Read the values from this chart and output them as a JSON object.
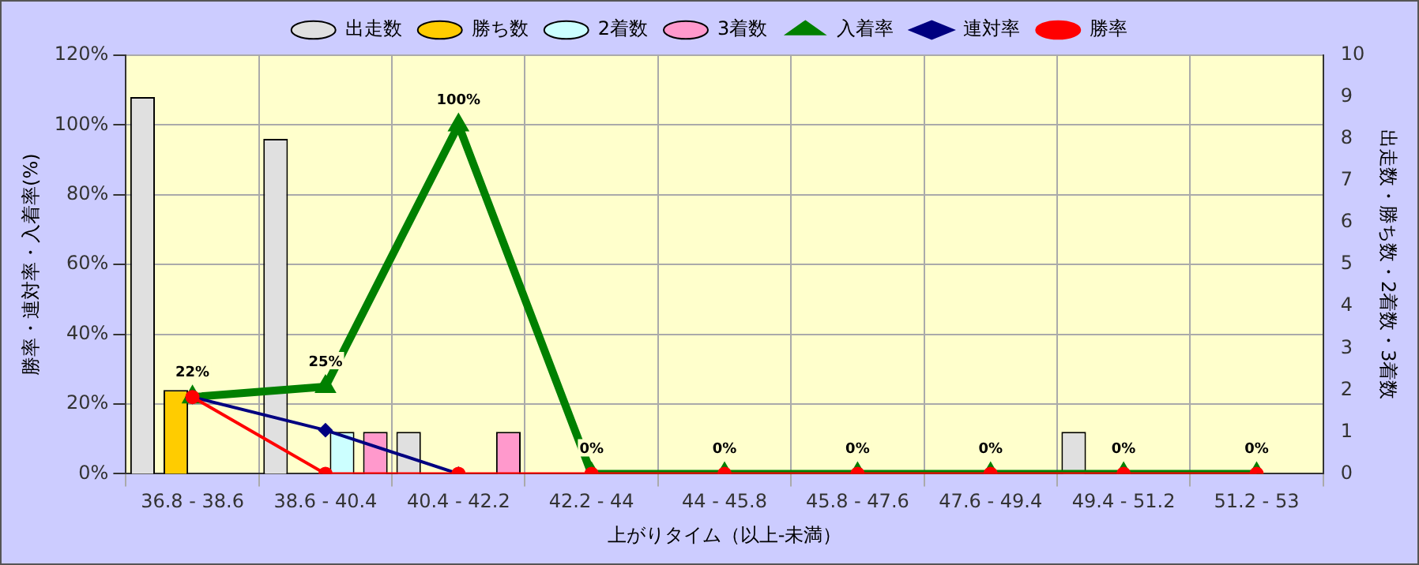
{
  "chart_data": {
    "type": "bar",
    "xlabel": "上がりタイム（以上-未満）",
    "ylabel": "勝率・連対率・入着率(%)",
    "y2label": "出走数・勝ち数・2着数・3着数",
    "categories": [
      "36.8 - 38.6",
      "38.6 - 40.4",
      "40.4 - 42.2",
      "42.2 - 44",
      "44 - 45.8",
      "45.8 - 47.6",
      "47.6 - 49.4",
      "49.4 - 51.2",
      "51.2 - 53"
    ],
    "series": [
      {
        "name": "出走数",
        "axis": "y2",
        "color": "#e0e0e0",
        "values": [
          9,
          8,
          1,
          0,
          0,
          0,
          0,
          1,
          0
        ]
      },
      {
        "name": "勝ち数",
        "axis": "y2",
        "color": "#ffcc00",
        "values": [
          2,
          0,
          0,
          0,
          0,
          0,
          0,
          0,
          0
        ]
      },
      {
        "name": "2着数",
        "axis": "y2",
        "color": "#ccffff",
        "values": [
          0,
          1,
          0,
          0,
          0,
          0,
          0,
          0,
          0
        ]
      },
      {
        "name": "3着数",
        "axis": "y2",
        "color": "#ff99cc",
        "values": [
          0,
          1,
          1,
          0,
          0,
          0,
          0,
          0,
          0
        ]
      },
      {
        "name": "入着率",
        "type": "line",
        "color": "#008000",
        "marker": "triangle",
        "values": [
          22,
          25,
          100,
          0,
          0,
          0,
          0,
          0,
          0
        ],
        "value_labels": [
          "22%",
          "25%",
          "100%",
          "0%",
          "0%",
          "0%",
          "0%",
          "0%",
          "0%"
        ]
      },
      {
        "name": "連対率",
        "type": "line",
        "color": "#000080",
        "marker": "diamond",
        "values": [
          22,
          12.5,
          0,
          null,
          null,
          null,
          null,
          null,
          null
        ]
      },
      {
        "name": "勝率",
        "type": "line",
        "color": "#ff0000",
        "marker": "circle",
        "values": [
          22,
          0,
          0,
          0,
          0,
          0,
          0,
          0,
          0
        ]
      }
    ],
    "ylim": [
      0,
      120
    ],
    "yticks": [
      {
        "value": 0,
        "label": "0%"
      },
      {
        "value": 20,
        "label": "20%"
      },
      {
        "value": 40,
        "label": "40%"
      },
      {
        "value": 60,
        "label": "60%"
      },
      {
        "value": 80,
        "label": "80%"
      },
      {
        "value": 100,
        "label": "100%"
      },
      {
        "value": 120,
        "label": "120%"
      }
    ],
    "y2lim": [
      0,
      10
    ],
    "y2ticks": [
      0,
      1,
      2,
      3,
      4,
      5,
      6,
      7,
      8,
      9,
      10
    ],
    "grid": true,
    "legend": "top"
  }
}
